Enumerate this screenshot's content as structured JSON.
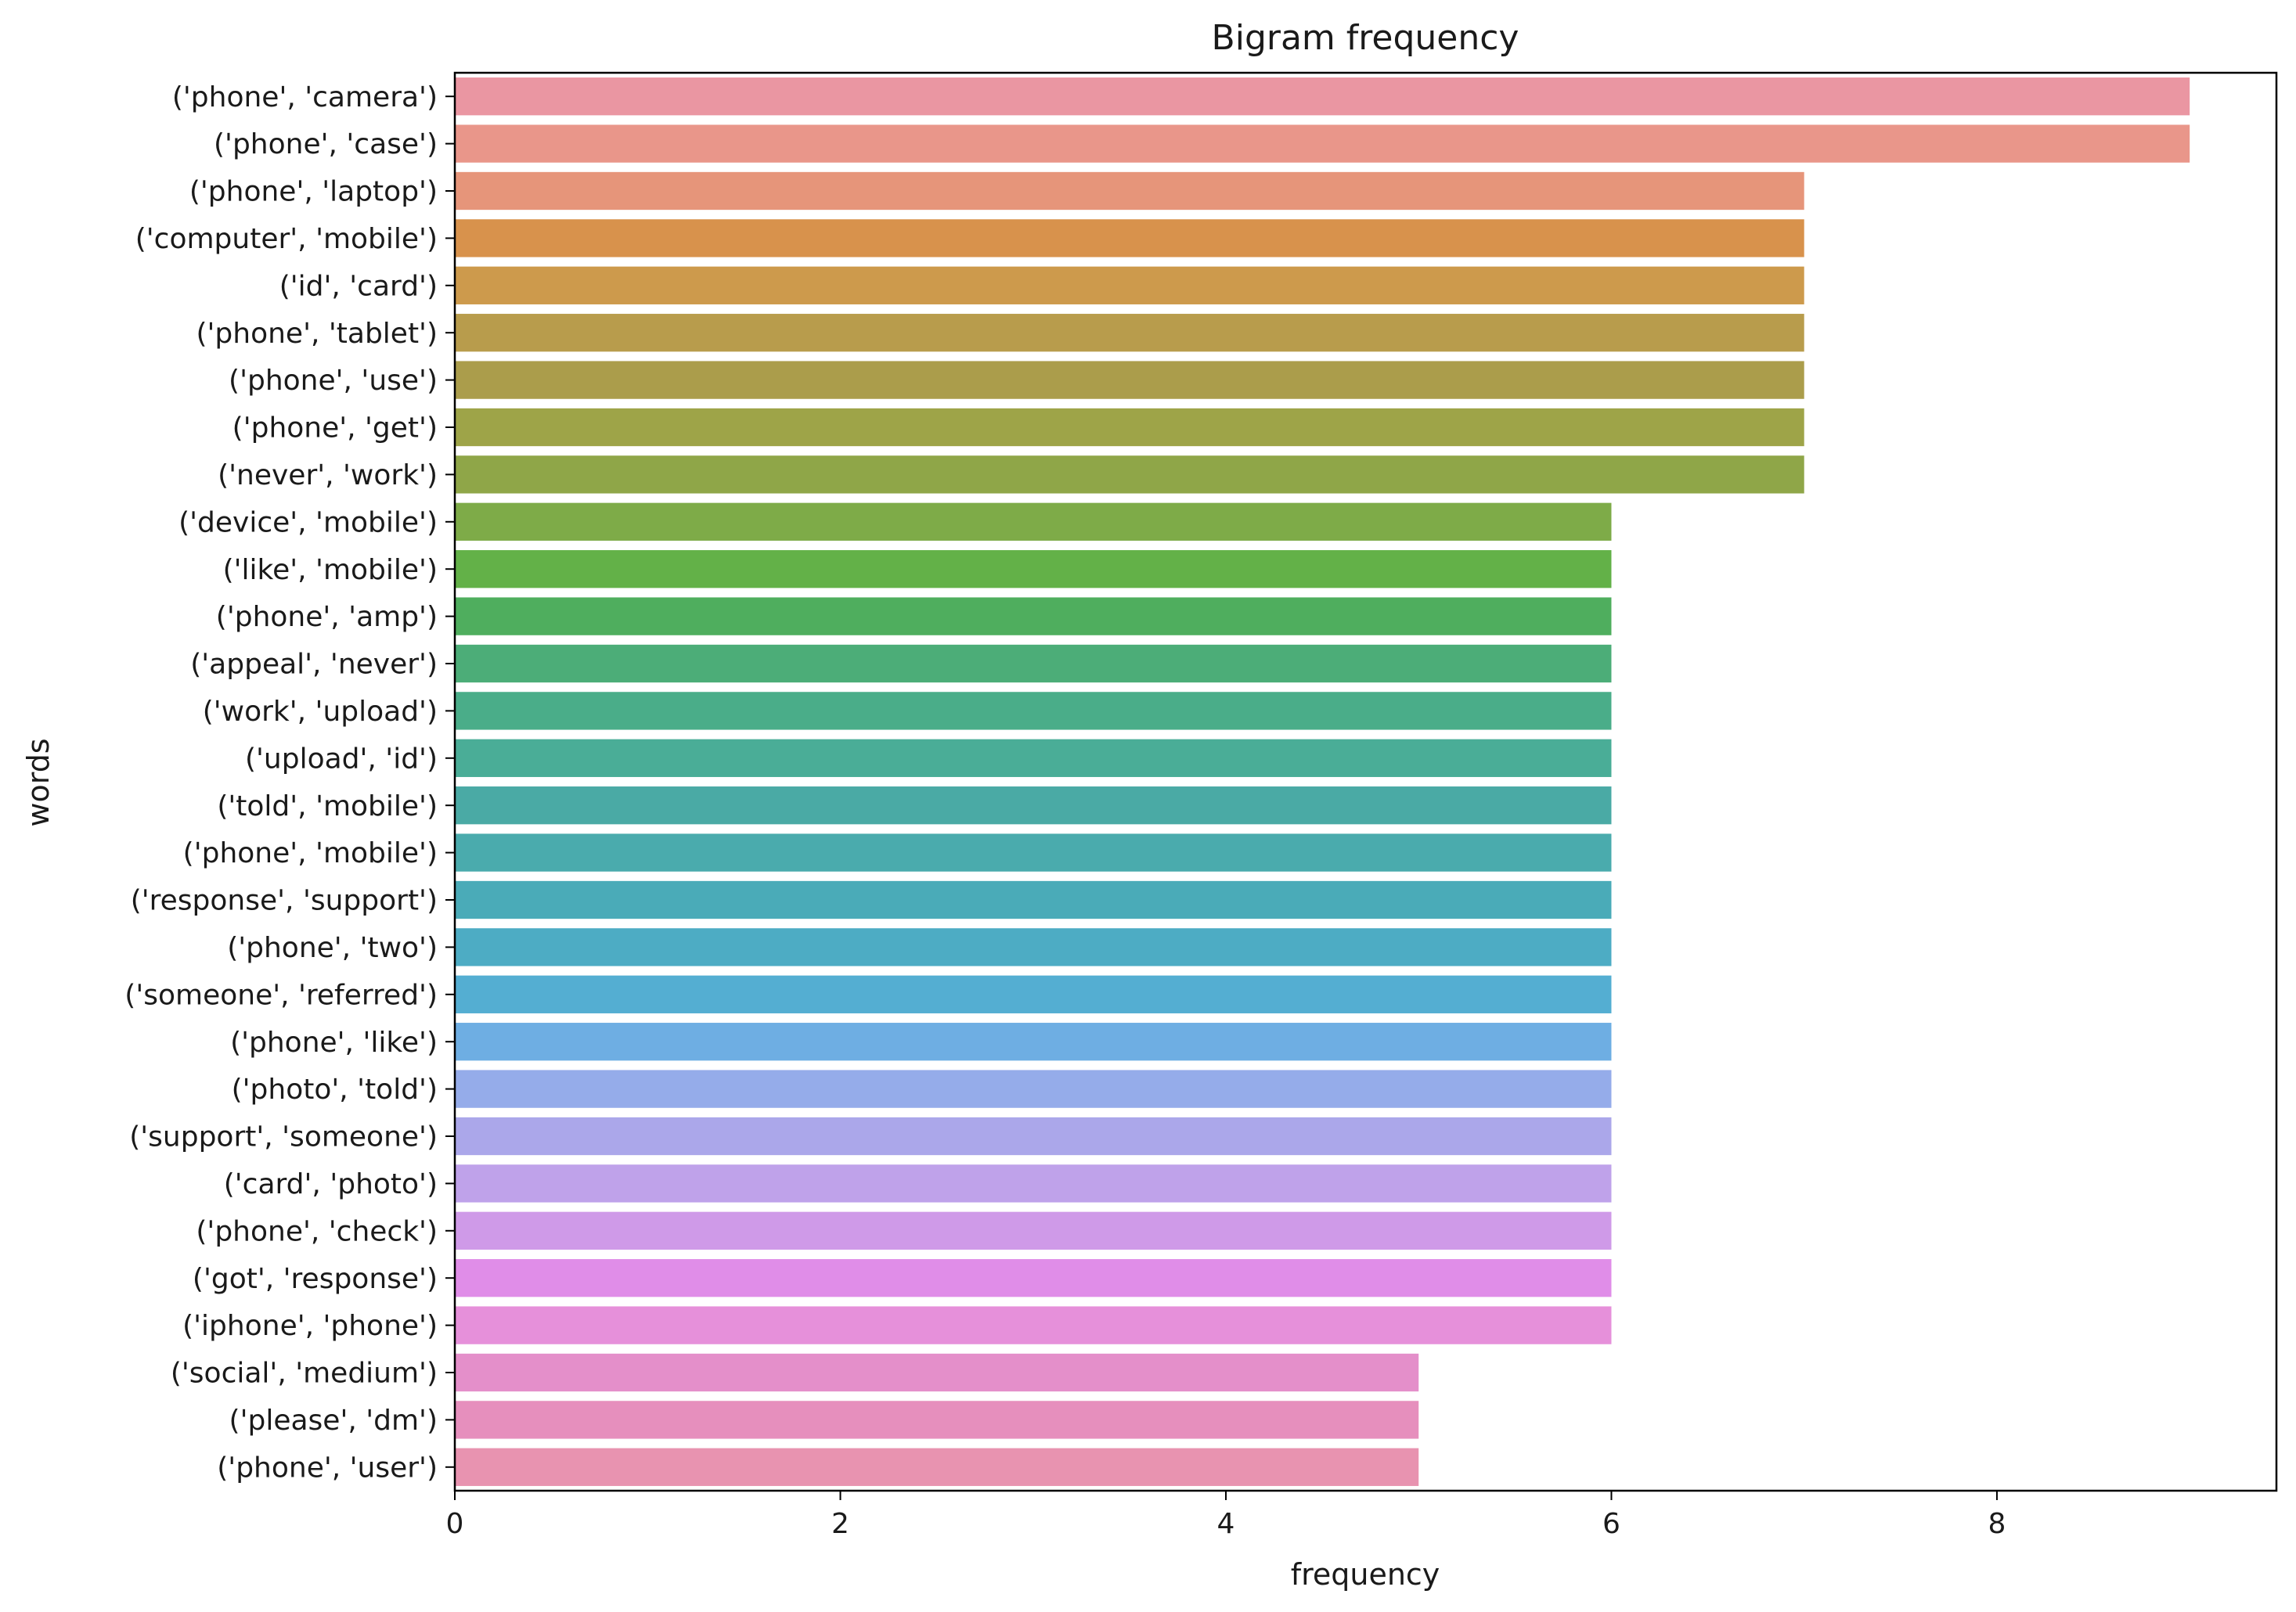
{
  "chart_data": {
    "type": "bar",
    "orientation": "horizontal",
    "title": "Bigram frequency",
    "xlabel": "frequency",
    "ylabel": "words",
    "xlim": [
      0,
      9.45
    ],
    "xticks": [
      0,
      2,
      4,
      6,
      8
    ],
    "grid": false,
    "legend": "none",
    "categories": [
      "('phone', 'camera')",
      "('phone', 'case')",
      "('phone', 'laptop')",
      "('computer', 'mobile')",
      "('id', 'card')",
      "('phone', 'tablet')",
      "('phone', 'use')",
      "('phone', 'get')",
      "('never', 'work')",
      "('device', 'mobile')",
      "('like', 'mobile')",
      "('phone', 'amp')",
      "('appeal', 'never')",
      "('work', 'upload')",
      "('upload', 'id')",
      "('told', 'mobile')",
      "('phone', 'mobile')",
      "('response', 'support')",
      "('phone', 'two')",
      "('someone', 'referred')",
      "('phone', 'like')",
      "('photo', 'told')",
      "('support', 'someone')",
      "('card', 'photo')",
      "('phone', 'check')",
      "('got', 'response')",
      "('iphone', 'phone')",
      "('social', 'medium')",
      "('please', 'dm')",
      "('phone', 'user')"
    ],
    "values": [
      9,
      9,
      7,
      7,
      7,
      7,
      7,
      7,
      7,
      6,
      6,
      6,
      6,
      6,
      6,
      6,
      6,
      6,
      6,
      6,
      6,
      6,
      6,
      6,
      6,
      6,
      6,
      5,
      5,
      5
    ],
    "colors": [
      "#ea96a2",
      "#e9968a",
      "#e6957a",
      "#d8924c",
      "#cd9a4c",
      "#b89c4c",
      "#ab9d4b",
      "#9ea448",
      "#8fa648",
      "#7eab48",
      "#63b148",
      "#4fae5e",
      "#4cad78",
      "#4aad89",
      "#4aad97",
      "#4aaaa5",
      "#4aabad",
      "#4aabb8",
      "#4dacc4",
      "#54aed2",
      "#6eaee3",
      "#95acea",
      "#aba7ea",
      "#bfa2ea",
      "#cf9ae8",
      "#e08de8",
      "#e690da",
      "#e48fca",
      "#e68fbd",
      "#e893b0"
    ]
  }
}
